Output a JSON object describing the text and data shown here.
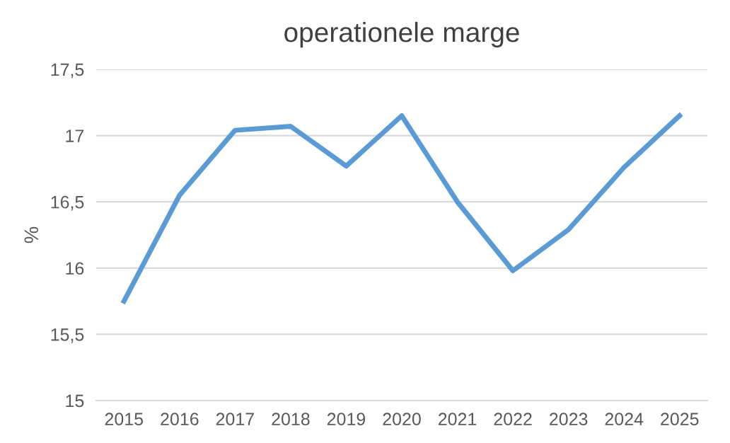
{
  "chart_data": {
    "type": "line",
    "title": "operationele marge",
    "ylabel": "%",
    "categories": [
      "2015",
      "2016",
      "2017",
      "2018",
      "2019",
      "2020",
      "2021",
      "2022",
      "2023",
      "2024",
      "2025"
    ],
    "series": [
      {
        "color": "#5b9bd5",
        "values": [
          15.75,
          16.55,
          17.04,
          17.07,
          16.77,
          17.15,
          16.5,
          15.98,
          16.29,
          16.76,
          17.15
        ]
      }
    ],
    "ylim": [
      15,
      17.5
    ],
    "yticks": [
      {
        "value": 15,
        "label": "15"
      },
      {
        "value": 15.5,
        "label": "15,5"
      },
      {
        "value": 16,
        "label": "16"
      },
      {
        "value": 16.5,
        "label": "16,5"
      },
      {
        "value": 17,
        "label": "17"
      },
      {
        "value": 17.5,
        "label": "17,5"
      }
    ],
    "grid": "y",
    "marker": "none",
    "line_style": "solid"
  }
}
